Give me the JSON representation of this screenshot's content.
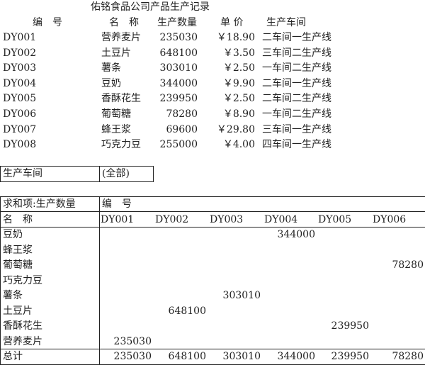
{
  "title": "佑铭食品公司产品生产记录",
  "records": {
    "headers": [
      "编　号",
      "名　称",
      "生产数量",
      "单 价",
      "生产车间"
    ],
    "rows": [
      {
        "id": "DY001",
        "name": "营养麦片",
        "qty": "235030",
        "price": "￥18.90",
        "workshop": "二车间一生产线"
      },
      {
        "id": "DY002",
        "name": "土豆片",
        "qty": "648100",
        "price": "￥3.50",
        "workshop": "三车间二生产线"
      },
      {
        "id": "DY003",
        "name": "薯条",
        "qty": "303010",
        "price": "￥2.50",
        "workshop": "一车间二生产线"
      },
      {
        "id": "DY004",
        "name": "豆奶",
        "qty": "344000",
        "price": "￥9.90",
        "workshop": "二车间一生产线"
      },
      {
        "id": "DY005",
        "name": "香酥花生",
        "qty": "239950",
        "price": "￥2.50",
        "workshop": "二车间二生产线"
      },
      {
        "id": "DY006",
        "name": "葡萄糖",
        "qty": "78280",
        "price": "￥8.90",
        "workshop": "一车间二生产线"
      },
      {
        "id": "DY007",
        "name": "蜂王浆",
        "qty": "69600",
        "price": "￥29.80",
        "workshop": "三车间一生产线"
      },
      {
        "id": "DY008",
        "name": "巧克力豆",
        "qty": "255000",
        "price": "￥4.00",
        "workshop": "四车间一生产线"
      }
    ]
  },
  "filter": {
    "label": "生产车间",
    "value": "(全部)"
  },
  "pivot": {
    "value_label": "求和项:生产数量",
    "column_field": "编　号",
    "row_field": "名　称",
    "columns": [
      "DY001",
      "DY002",
      "DY003",
      "DY004",
      "DY005",
      "DY006"
    ],
    "rows": [
      {
        "name": "豆奶",
        "values": [
          "",
          "",
          "",
          "344000",
          "",
          ""
        ]
      },
      {
        "name": "蜂王浆",
        "values": [
          "",
          "",
          "",
          "",
          "",
          ""
        ]
      },
      {
        "name": "葡萄糖",
        "values": [
          "",
          "",
          "",
          "",
          "",
          "78280"
        ]
      },
      {
        "name": "巧克力豆",
        "values": [
          "",
          "",
          "",
          "",
          "",
          ""
        ]
      },
      {
        "name": "薯条",
        "values": [
          "",
          "",
          "303010",
          "",
          "",
          ""
        ]
      },
      {
        "name": "土豆片",
        "values": [
          "",
          "648100",
          "",
          "",
          "",
          ""
        ]
      },
      {
        "name": "香酥花生",
        "values": [
          "",
          "",
          "",
          "",
          "239950",
          ""
        ]
      },
      {
        "name": "营养麦片",
        "values": [
          "235030",
          "",
          "",
          "",
          "",
          ""
        ]
      }
    ],
    "total": {
      "label": "总计",
      "values": [
        "235030",
        "648100",
        "303010",
        "344000",
        "239950",
        "78280"
      ]
    }
  }
}
